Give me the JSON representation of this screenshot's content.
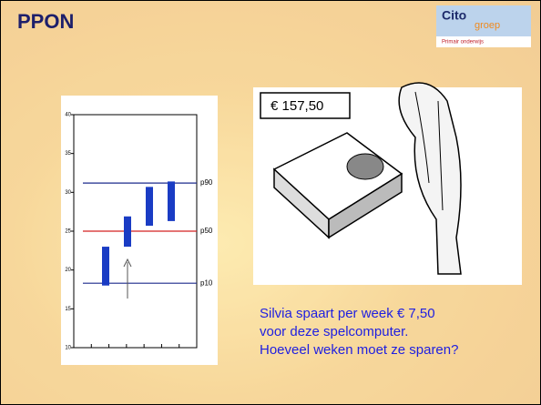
{
  "header": {
    "title": "PPON",
    "logo": "Cito",
    "logo_sub": "groep",
    "logo_tagline": "Primair onderwijs"
  },
  "illustration": {
    "price_tag": "€ 157,50"
  },
  "question": {
    "lines": [
      "Silvia spaart per week € 7,50",
      "voor deze spelcomputer.",
      "Hoeveel weken moet ze sparen?"
    ]
  },
  "chart_data": {
    "type": "range-bar",
    "ylim": [
      10,
      40
    ],
    "yticks": [
      10,
      15,
      20,
      25,
      30,
      35,
      40
    ],
    "lows": [
      18,
      23,
      25.7,
      26.3
    ],
    "highs": [
      23,
      26.9,
      30.7,
      31.4
    ],
    "color": "#1a3cc4",
    "reference_lines": [
      {
        "name": "p90",
        "value": 31.2,
        "color": "#1c2a8c"
      },
      {
        "name": "p50",
        "value": 25,
        "color": "#d42020"
      },
      {
        "name": "p10",
        "value": 18.3,
        "color": "#1c2a8c"
      }
    ]
  }
}
